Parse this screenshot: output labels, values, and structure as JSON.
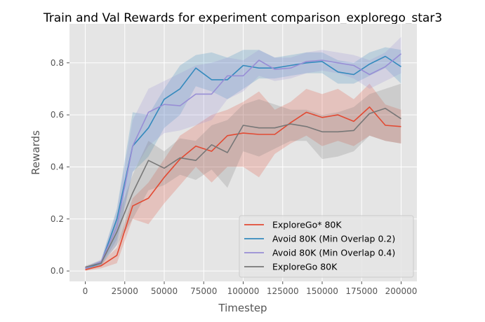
{
  "chart_data": {
    "type": "line",
    "title": "Train and Val Rewards for experiment comparison_explorego_star3",
    "xlabel": "Timestep",
    "ylabel": "Rewards",
    "xlim": [
      -10000,
      210000
    ],
    "ylim": [
      -0.04,
      0.95
    ],
    "xticks": [
      0,
      25000,
      50000,
      75000,
      100000,
      125000,
      150000,
      175000,
      200000
    ],
    "yticks": [
      0.0,
      0.2,
      0.4,
      0.6,
      0.8
    ],
    "xtick_labels": [
      "0",
      "25000",
      "50000",
      "75000",
      "100000",
      "125000",
      "150000",
      "175000",
      "200000"
    ],
    "ytick_labels": [
      "0.0",
      "0.2",
      "0.4",
      "0.6",
      "0.8"
    ],
    "grid": true,
    "legend_position": "lower-right",
    "x": [
      0,
      10000,
      20000,
      30000,
      40000,
      50000,
      60000,
      70000,
      80000,
      90000,
      100000,
      110000,
      120000,
      130000,
      140000,
      150000,
      160000,
      170000,
      180000,
      190000,
      200000
    ],
    "series": [
      {
        "name": "ExploreGo* 80K",
        "color": "#E24A33",
        "values": [
          0.005,
          0.02,
          0.06,
          0.25,
          0.28,
          0.36,
          0.43,
          0.48,
          0.46,
          0.52,
          0.53,
          0.525,
          0.525,
          0.57,
          0.61,
          0.59,
          0.6,
          0.575,
          0.63,
          0.56,
          0.555
        ],
        "lower": [
          0.0,
          0.01,
          0.03,
          0.2,
          0.18,
          0.26,
          0.33,
          0.4,
          0.34,
          0.4,
          0.4,
          0.36,
          0.45,
          0.49,
          0.52,
          0.48,
          0.5,
          0.48,
          0.52,
          0.5,
          0.49
        ],
        "upper": [
          0.01,
          0.03,
          0.09,
          0.28,
          0.34,
          0.43,
          0.52,
          0.56,
          0.6,
          0.62,
          0.65,
          0.69,
          0.62,
          0.65,
          0.7,
          0.68,
          0.7,
          0.66,
          0.72,
          0.64,
          0.62
        ]
      },
      {
        "name": "Avoid 80K (Min Overlap 0.2)",
        "color": "#348ABD",
        "values": [
          0.01,
          0.03,
          0.2,
          0.48,
          0.55,
          0.66,
          0.7,
          0.78,
          0.735,
          0.735,
          0.79,
          0.78,
          0.78,
          0.79,
          0.8,
          0.805,
          0.765,
          0.755,
          0.795,
          0.825,
          0.785
        ],
        "lower": [
          0.005,
          0.02,
          0.12,
          0.38,
          0.44,
          0.55,
          0.6,
          0.71,
          0.69,
          0.66,
          0.7,
          0.74,
          0.74,
          0.75,
          0.76,
          0.76,
          0.72,
          0.72,
          0.75,
          0.78,
          0.72
        ],
        "upper": [
          0.015,
          0.04,
          0.24,
          0.61,
          0.6,
          0.7,
          0.79,
          0.83,
          0.84,
          0.82,
          0.85,
          0.85,
          0.82,
          0.83,
          0.84,
          0.84,
          0.81,
          0.8,
          0.84,
          0.86,
          0.85
        ]
      },
      {
        "name": "Avoid 80K (Min Overlap 0.4)",
        "color": "#988ED5",
        "values": [
          0.01,
          0.035,
          0.17,
          0.48,
          0.61,
          0.64,
          0.635,
          0.68,
          0.68,
          0.75,
          0.75,
          0.81,
          0.775,
          0.78,
          0.805,
          0.81,
          0.8,
          0.79,
          0.755,
          0.785,
          0.835
        ],
        "lower": [
          0.005,
          0.025,
          0.1,
          0.38,
          0.48,
          0.53,
          0.54,
          0.56,
          0.58,
          0.66,
          0.69,
          0.75,
          0.73,
          0.74,
          0.76,
          0.77,
          0.76,
          0.74,
          0.7,
          0.73,
          0.76
        ],
        "upper": [
          0.015,
          0.045,
          0.23,
          0.58,
          0.7,
          0.73,
          0.76,
          0.79,
          0.8,
          0.82,
          0.81,
          0.85,
          0.82,
          0.82,
          0.84,
          0.85,
          0.84,
          0.83,
          0.81,
          0.84,
          0.9
        ]
      },
      {
        "name": "ExploreGo 80K",
        "color": "#777777",
        "values": [
          0.015,
          0.03,
          0.15,
          0.3,
          0.425,
          0.395,
          0.435,
          0.425,
          0.485,
          0.455,
          0.56,
          0.55,
          0.55,
          0.565,
          0.555,
          0.535,
          0.535,
          0.54,
          0.605,
          0.625,
          0.585
        ],
        "lower": [
          0.01,
          0.02,
          0.1,
          0.2,
          0.31,
          0.33,
          0.37,
          0.35,
          0.39,
          0.32,
          0.46,
          0.44,
          0.47,
          0.5,
          0.5,
          0.43,
          0.44,
          0.46,
          0.52,
          0.5,
          0.49
        ],
        "upper": [
          0.02,
          0.04,
          0.2,
          0.37,
          0.5,
          0.46,
          0.51,
          0.5,
          0.56,
          0.58,
          0.64,
          0.66,
          0.64,
          0.62,
          0.62,
          0.6,
          0.61,
          0.63,
          0.68,
          0.7,
          0.72
        ]
      }
    ]
  }
}
